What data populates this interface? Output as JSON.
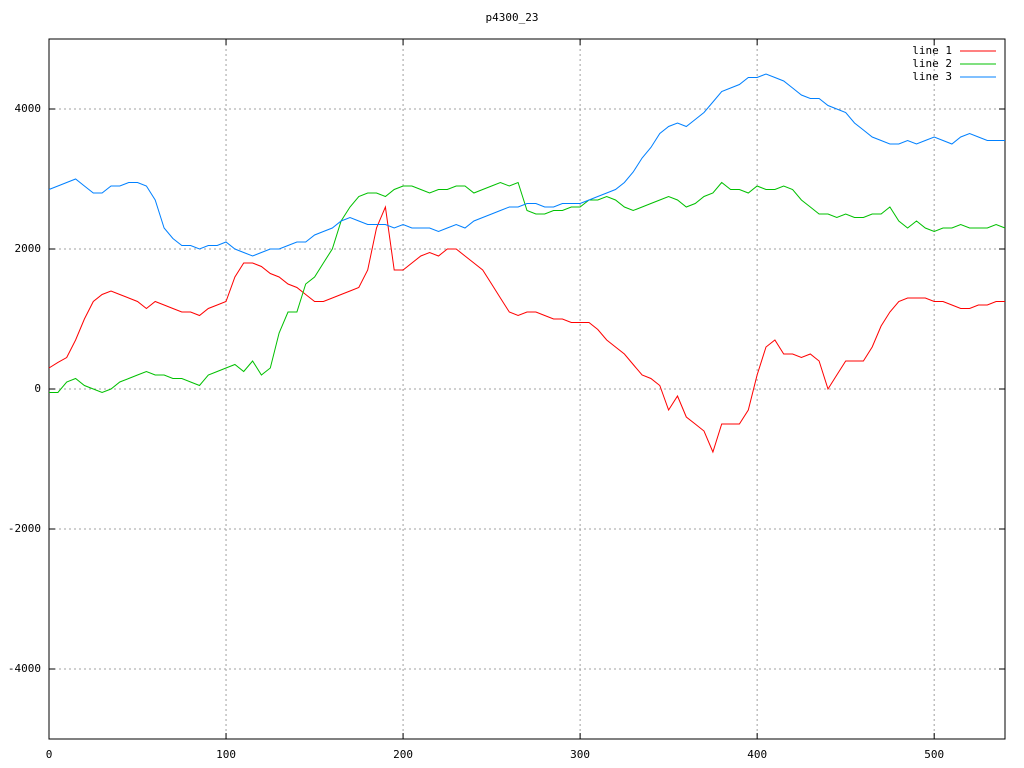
{
  "chart_data": {
    "type": "line",
    "title": "p4300_23",
    "x": [
      0,
      5,
      10,
      15,
      20,
      25,
      30,
      35,
      40,
      45,
      50,
      55,
      60,
      65,
      70,
      75,
      80,
      85,
      90,
      95,
      100,
      105,
      110,
      115,
      120,
      125,
      130,
      135,
      140,
      145,
      150,
      155,
      160,
      165,
      170,
      175,
      180,
      185,
      190,
      195,
      200,
      205,
      210,
      215,
      220,
      225,
      230,
      235,
      240,
      245,
      250,
      255,
      260,
      265,
      270,
      275,
      280,
      285,
      290,
      295,
      300,
      305,
      310,
      315,
      320,
      325,
      330,
      335,
      340,
      345,
      350,
      355,
      360,
      365,
      370,
      375,
      380,
      385,
      390,
      395,
      400,
      405,
      410,
      415,
      420,
      425,
      430,
      435,
      440,
      445,
      450,
      455,
      460,
      465,
      470,
      475,
      480,
      485,
      490,
      495,
      500,
      505,
      510,
      515,
      520,
      525,
      530,
      535,
      540
    ],
    "series": [
      {
        "name": "line 1",
        "color": "#ff0000",
        "values": [
          300,
          380,
          450,
          700,
          1000,
          1250,
          1350,
          1400,
          1350,
          1300,
          1250,
          1150,
          1250,
          1200,
          1150,
          1100,
          1100,
          1050,
          1150,
          1200,
          1250,
          1600,
          1800,
          1800,
          1750,
          1650,
          1600,
          1500,
          1450,
          1350,
          1250,
          1250,
          1300,
          1350,
          1400,
          1450,
          1700,
          2300,
          2600,
          1700,
          1700,
          1800,
          1900,
          1950,
          1900,
          2000,
          2000,
          1900,
          1800,
          1700,
          1500,
          1300,
          1100,
          1050,
          1100,
          1100,
          1050,
          1000,
          1000,
          950,
          950,
          950,
          850,
          700,
          600,
          500,
          350,
          200,
          150,
          50,
          -300,
          -100,
          -400,
          -500,
          -600,
          -900,
          -500,
          -500,
          -500,
          -300,
          200,
          600,
          700,
          500,
          500,
          450,
          500,
          400,
          0,
          200,
          400,
          400,
          400,
          600,
          900,
          1100,
          1250,
          1300,
          1300,
          1300,
          1250,
          1250,
          1200,
          1150,
          1150,
          1200,
          1200,
          1250,
          1250
        ]
      },
      {
        "name": "line 2",
        "color": "#00c000",
        "values": [
          -50,
          -50,
          100,
          150,
          50,
          0,
          -50,
          0,
          100,
          150,
          200,
          250,
          200,
          200,
          150,
          150,
          100,
          50,
          200,
          250,
          300,
          350,
          250,
          400,
          200,
          300,
          800,
          1100,
          1100,
          1500,
          1600,
          1800,
          2000,
          2400,
          2600,
          2750,
          2800,
          2800,
          2750,
          2850,
          2900,
          2900,
          2850,
          2800,
          2850,
          2850,
          2900,
          2900,
          2800,
          2850,
          2900,
          2950,
          2900,
          2950,
          2550,
          2500,
          2500,
          2550,
          2550,
          2600,
          2600,
          2700,
          2700,
          2750,
          2700,
          2600,
          2550,
          2600,
          2650,
          2700,
          2750,
          2700,
          2600,
          2650,
          2750,
          2800,
          2950,
          2850,
          2850,
          2800,
          2900,
          2850,
          2850,
          2900,
          2850,
          2700,
          2600,
          2500,
          2500,
          2450,
          2500,
          2450,
          2450,
          2500,
          2500,
          2600,
          2400,
          2300,
          2400,
          2300,
          2250,
          2300,
          2300,
          2350,
          2300,
          2300,
          2300,
          2350,
          2300
        ]
      },
      {
        "name": "line 3",
        "color": "#0080ff",
        "values": [
          2850,
          2900,
          2950,
          3000,
          2900,
          2800,
          2800,
          2900,
          2900,
          2950,
          2950,
          2900,
          2700,
          2300,
          2150,
          2050,
          2050,
          2000,
          2050,
          2050,
          2100,
          2000,
          1950,
          1900,
          1950,
          2000,
          2000,
          2050,
          2100,
          2100,
          2200,
          2250,
          2300,
          2400,
          2450,
          2400,
          2350,
          2350,
          2350,
          2300,
          2350,
          2300,
          2300,
          2300,
          2250,
          2300,
          2350,
          2300,
          2400,
          2450,
          2500,
          2550,
          2600,
          2600,
          2650,
          2650,
          2600,
          2600,
          2650,
          2650,
          2650,
          2700,
          2750,
          2800,
          2850,
          2950,
          3100,
          3300,
          3450,
          3650,
          3750,
          3800,
          3750,
          3850,
          3950,
          4100,
          4250,
          4300,
          4350,
          4450,
          4450,
          4500,
          4450,
          4400,
          4300,
          4200,
          4150,
          4150,
          4050,
          4000,
          3950,
          3800,
          3700,
          3600,
          3550,
          3500,
          3500,
          3550,
          3500,
          3550,
          3600,
          3550,
          3500,
          3600,
          3650,
          3600,
          3550,
          3550,
          3550
        ]
      }
    ],
    "xlim": [
      0,
      540
    ],
    "xticks": [
      0,
      100,
      200,
      300,
      400,
      500
    ],
    "ylim": [
      -5000,
      5000
    ],
    "yticks": [
      -4000,
      -2000,
      0,
      2000,
      4000
    ],
    "grid": true,
    "legend": "top-right"
  }
}
